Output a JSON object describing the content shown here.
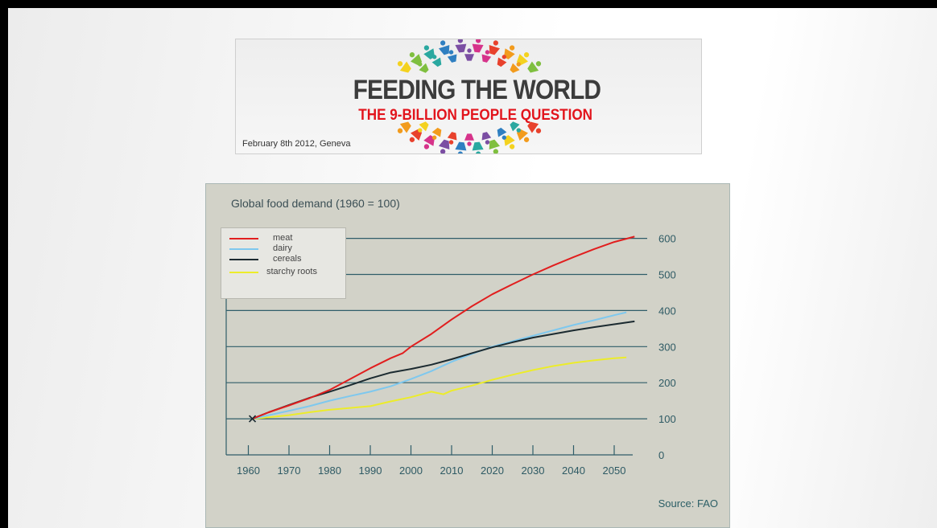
{
  "banner": {
    "title": "FEEDING THE WORLD",
    "subtitle": "THE 9-BILLION PEOPLE QUESTION",
    "date": "February 8th 2012, Geneva"
  },
  "chart_data": {
    "type": "line",
    "title": "Global food demand (1960 = 100)",
    "source": "Source: FAO",
    "xlabel": "",
    "ylabel": "",
    "xlim": [
      1960,
      2055
    ],
    "ylim": [
      0,
      600
    ],
    "x_ticks": [
      1960,
      1970,
      1980,
      1990,
      2000,
      2010,
      2020,
      2030,
      2040,
      2050
    ],
    "y_ticks": [
      0,
      100,
      200,
      300,
      400,
      500,
      600
    ],
    "grid": true,
    "legend_position": "top-left",
    "series": [
      {
        "name": "meat",
        "color": "#e11e1e",
        "x": [
          1961,
          1965,
          1970,
          1975,
          1980,
          1985,
          1990,
          1995,
          1998,
          2000,
          2005,
          2010,
          2015,
          2020,
          2025,
          2030,
          2035,
          2040,
          2045,
          2050,
          2055
        ],
        "y": [
          100,
          118,
          137,
          157,
          180,
          210,
          240,
          268,
          282,
          300,
          335,
          375,
          412,
          445,
          473,
          500,
          525,
          548,
          570,
          590,
          605
        ]
      },
      {
        "name": "dairy",
        "color": "#7ec8ee",
        "x": [
          1961,
          1965,
          1970,
          1975,
          1980,
          1985,
          1990,
          1995,
          2000,
          2005,
          2010,
          2015,
          2020,
          2025,
          2030,
          2035,
          2040,
          2045,
          2050,
          2053
        ],
        "y": [
          100,
          110,
          122,
          135,
          150,
          163,
          175,
          190,
          210,
          232,
          258,
          280,
          300,
          315,
          330,
          345,
          360,
          373,
          387,
          395
        ]
      },
      {
        "name": "cereals",
        "color": "#1b2a30",
        "x": [
          1961,
          1965,
          1970,
          1975,
          1980,
          1985,
          1990,
          1995,
          2000,
          2005,
          2010,
          2015,
          2020,
          2025,
          2030,
          2035,
          2040,
          2045,
          2050,
          2055
        ],
        "y": [
          100,
          118,
          138,
          158,
          175,
          193,
          212,
          228,
          238,
          250,
          265,
          282,
          298,
          312,
          325,
          335,
          345,
          354,
          362,
          370
        ]
      },
      {
        "name": "starchy roots",
        "color": "#ecec2a",
        "x": [
          1961,
          1965,
          1970,
          1975,
          1980,
          1985,
          1990,
          1995,
          2000,
          2005,
          2008,
          2010,
          2015,
          2020,
          2025,
          2030,
          2035,
          2040,
          2045,
          2050,
          2053
        ],
        "y": [
          100,
          104,
          110,
          118,
          125,
          130,
          135,
          148,
          160,
          175,
          168,
          178,
          192,
          208,
          222,
          235,
          246,
          255,
          262,
          268,
          270
        ]
      }
    ]
  }
}
